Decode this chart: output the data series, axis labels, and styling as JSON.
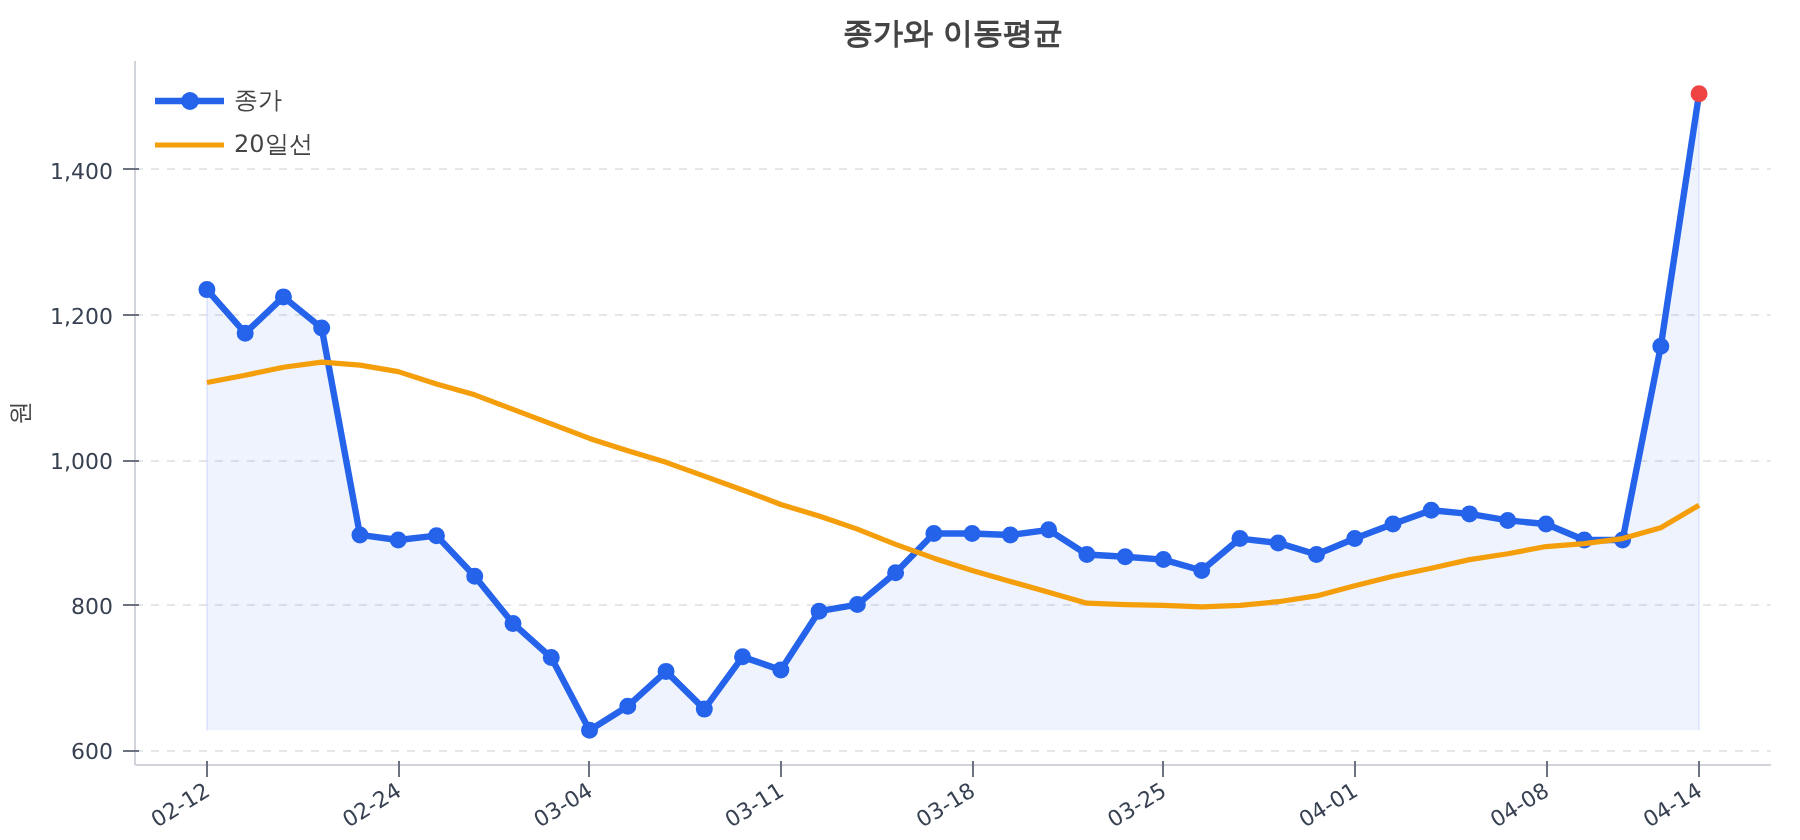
{
  "chart_data": {
    "type": "line",
    "title": "종가와 이동평균",
    "ylabel": "원",
    "categories": [
      "02-12",
      null,
      null,
      null,
      null,
      "02-24",
      null,
      null,
      null,
      null,
      "03-04",
      null,
      null,
      null,
      null,
      "03-11",
      null,
      null,
      null,
      null,
      "03-18",
      null,
      null,
      null,
      null,
      "03-25",
      null,
      null,
      null,
      null,
      "04-01",
      null,
      null,
      null,
      null,
      "04-08",
      null,
      null,
      null,
      "04-14"
    ],
    "series": [
      {
        "name": "종가",
        "type": "area",
        "marker": "circle",
        "color": "#2563eb",
        "colors": [
          "#2563eb",
          "#2563eb",
          "#2563eb",
          "#2563eb",
          "#2563eb",
          "#2563eb",
          "#2563eb",
          "#2563eb",
          "#2563eb",
          "#2563eb",
          "#2563eb",
          "#2563eb",
          "#2563eb",
          "#2563eb",
          "#2563eb",
          "#2563eb",
          "#2563eb",
          "#2563eb",
          "#2563eb",
          "#2563eb",
          "#2563eb",
          "#2563eb",
          "#2563eb",
          "#2563eb",
          "#2563eb",
          "#2563eb",
          "#2563eb",
          "#2563eb",
          "#2563eb",
          "#2563eb",
          "#2563eb",
          "#2563eb",
          "#2563eb",
          "#2563eb",
          "#2563eb",
          "#2563eb",
          "#2563eb",
          "#2563eb",
          "#2563eb",
          "#ef4444"
        ],
        "values": [
          1235,
          1175,
          1225,
          1182,
          897,
          890,
          896,
          840,
          775,
          728,
          628,
          661,
          709,
          657,
          729,
          711,
          792,
          801,
          845,
          899,
          899,
          897,
          904,
          870,
          867,
          863,
          848,
          892,
          886,
          870,
          892,
          912,
          931,
          926,
          917,
          912,
          890,
          890,
          1157,
          1505
        ]
      },
      {
        "name": "20일선",
        "marker": "none",
        "color": "#f59e0b",
        "values": [
          1107,
          1117,
          1128,
          1135,
          1131,
          1122,
          1105,
          1090,
          1070,
          1050,
          1030,
          1013,
          997,
          978,
          959,
          939,
          923,
          905,
          884,
          865,
          848,
          833,
          818,
          803,
          801,
          800,
          798,
          800,
          805,
          813,
          827,
          840,
          851,
          863,
          871,
          881,
          885,
          892,
          907,
          938
        ]
      }
    ],
    "ylim": [
      580,
      1550
    ],
    "yticks": [
      600,
      800,
      {
        "value": 1000,
        "label": "1,000"
      },
      {
        "value": 1200,
        "label": "1,200"
      },
      {
        "value": 1400,
        "label": "1,400"
      }
    ],
    "grid": "y",
    "legend": "top left",
    "line_style": "solid"
  }
}
